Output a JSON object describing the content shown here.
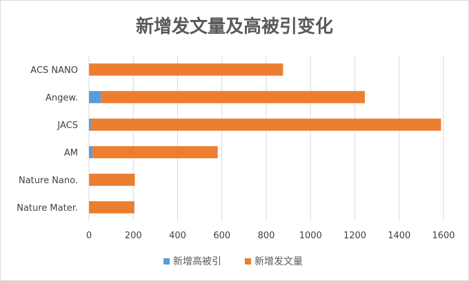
{
  "chart_data": {
    "type": "bar",
    "orientation": "horizontal",
    "stacked": true,
    "title": "新增发文量及高被引变化",
    "categories": [
      "ACS NANO",
      "Angew.",
      "JACS",
      "AM",
      "Nature Nano.",
      "Nature Mater."
    ],
    "series": [
      {
        "name": "新增高被引",
        "color": "#5b9bd5",
        "values": [
          1,
          55,
          9,
          16,
          2,
          2
        ]
      },
      {
        "name": "新增发文量",
        "color": "#ed7d31",
        "values": [
          875,
          1190,
          1580,
          565,
          205,
          203
        ]
      }
    ],
    "xlim": [
      0,
      1600
    ],
    "xticks": [
      0,
      200,
      400,
      600,
      800,
      1000,
      1200,
      1400,
      1600
    ],
    "grid": true,
    "legend_position": "bottom"
  }
}
